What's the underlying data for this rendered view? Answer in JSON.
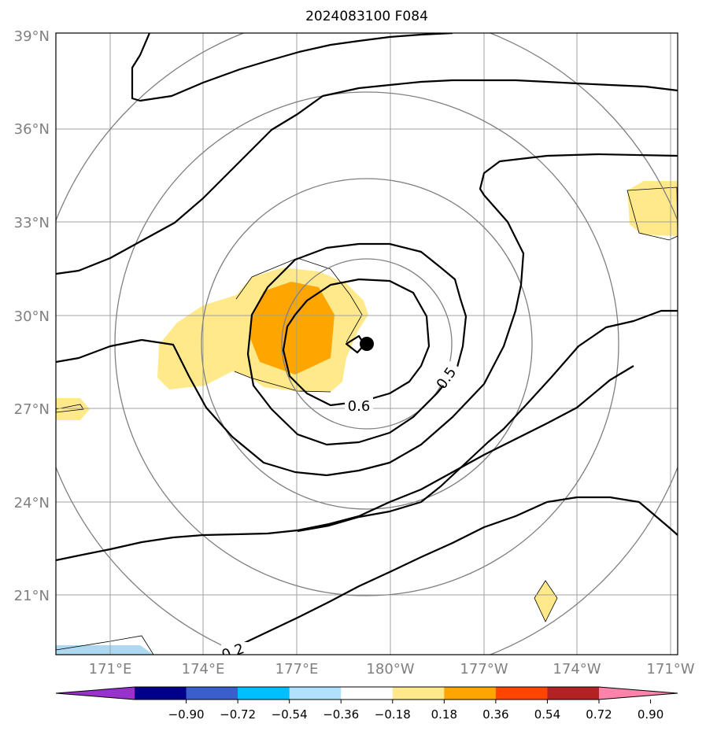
{
  "map": {
    "title": "2024083100 F084",
    "lat_labels": [
      "39°N",
      "36°N",
      "33°N",
      "30°N",
      "27°N",
      "24°N",
      "21°N"
    ],
    "lon_labels": [
      "171°E",
      "174°E",
      "177°E",
      "180°W",
      "177°W",
      "174°W",
      "171°W"
    ],
    "extent": {
      "lon_min": 169.3,
      "lon_max": 189.3,
      "lat_min": 19.0,
      "lat_max": 39.0
    },
    "storm_center": {
      "lon": 179.2,
      "lat": 29.1
    },
    "contour_labels": [
      "0.6",
      "0.5",
      "0.2"
    ],
    "colors": {
      "light_yellow": "#ffe98a",
      "orange": "#ffa500",
      "light_blue": "#add8f0",
      "gridline": "#a0a0a0",
      "range_ring": "#808080",
      "contour": "#000000"
    }
  },
  "colorbar": {
    "ticks": [
      "−0.90",
      "−0.72",
      "−0.54",
      "−0.36",
      "−0.18",
      "0.18",
      "0.36",
      "0.54",
      "0.72",
      "0.90"
    ],
    "colors": [
      "#9932cc",
      "#00008b",
      "#3a5fcd",
      "#00bfff",
      "#b0e2ff",
      "#ffffff",
      "#ffe98a",
      "#ffa500",
      "#ff4500",
      "#b22222",
      "#ff82ab"
    ]
  }
}
